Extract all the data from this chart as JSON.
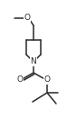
{
  "bg_color": "#ffffff",
  "line_color": "#2a2a2a",
  "line_width": 1.1,
  "figsize": [
    0.74,
    1.32
  ],
  "dpi": 100,
  "xlim": [
    0,
    74
  ],
  "ylim": [
    0,
    132
  ]
}
